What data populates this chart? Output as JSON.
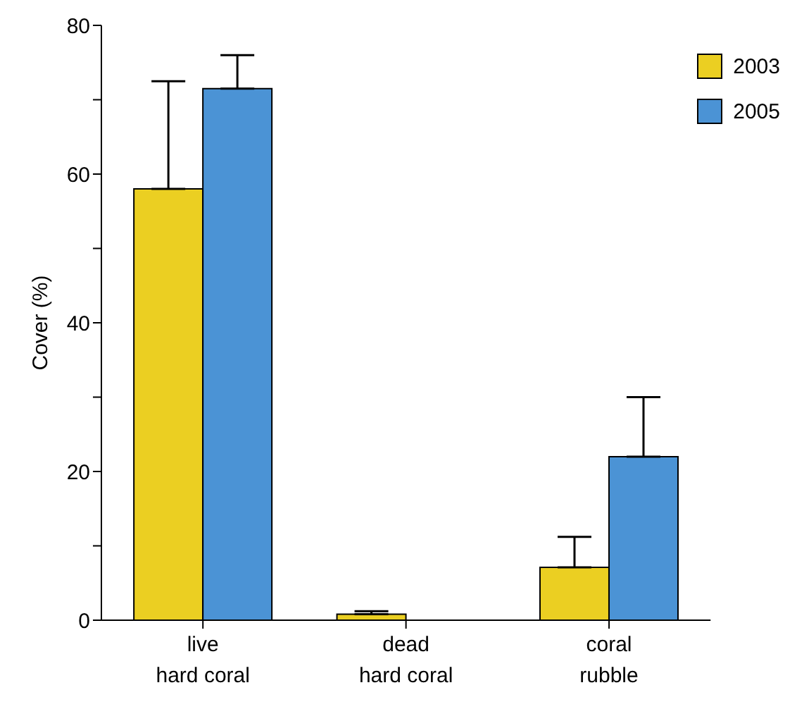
{
  "chart_data": {
    "type": "bar",
    "ylabel": "Cover (%)",
    "categories": [
      "live\nhard coral",
      "dead\nhard coral",
      "coral\nrubble"
    ],
    "series": [
      {
        "name": "2003",
        "color": "#ebcf22",
        "values": [
          58,
          0.8,
          7.1
        ],
        "errors": [
          [
            58,
            72.5
          ],
          [
            0.8,
            1.2
          ],
          [
            7.1,
            11.2
          ]
        ]
      },
      {
        "name": "2005",
        "color": "#4b93d5",
        "values": [
          71.5,
          0,
          22
        ],
        "errors": [
          [
            71.5,
            76
          ],
          null,
          [
            22,
            30
          ]
        ]
      }
    ],
    "ylim": [
      0,
      80
    ],
    "yticks": [
      0,
      {
        "value": 10,
        "label": null
      },
      20,
      {
        "value": 30,
        "label": null
      },
      40,
      {
        "value": 50,
        "label": null
      },
      60,
      {
        "value": 70,
        "label": null
      },
      80
    ],
    "grid": false,
    "legend": "top right"
  }
}
